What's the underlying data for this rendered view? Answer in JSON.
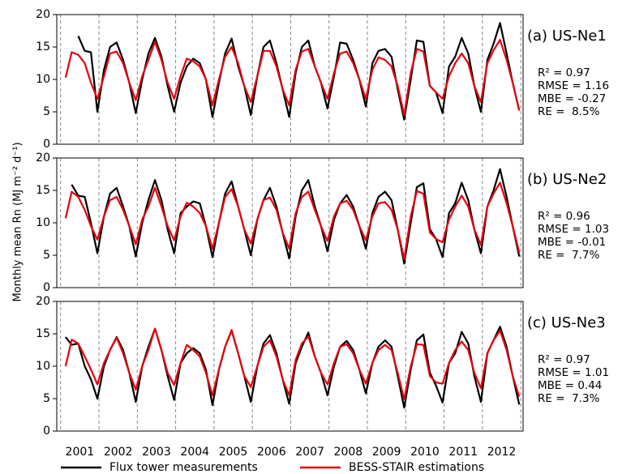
{
  "chart_data": [
    {
      "type": "line",
      "panel_label": "(a) US-Ne1",
      "stats": [
        "R² = 0.97",
        "RMSE = 1.16",
        "MBE = -0.27",
        "RE =  8.5%"
      ],
      "xlim": [
        2000.9,
        2013.06
      ],
      "ylim": [
        0,
        20
      ],
      "yticks": [
        0,
        5,
        10,
        15,
        20
      ],
      "vlines": [
        2001,
        2002,
        2003,
        2004,
        2005,
        2006,
        2007,
        2008,
        2009,
        2010,
        2011,
        2012,
        2013
      ],
      "x": [
        2001.13,
        2001.29,
        2001.46,
        2001.63,
        2001.79,
        2001.96,
        2002.13,
        2002.29,
        2002.46,
        2002.63,
        2002.79,
        2002.96,
        2003.13,
        2003.29,
        2003.46,
        2003.63,
        2003.79,
        2003.96,
        2004.13,
        2004.29,
        2004.46,
        2004.63,
        2004.79,
        2004.96,
        2005.13,
        2005.29,
        2005.46,
        2005.63,
        2005.79,
        2005.96,
        2006.13,
        2006.29,
        2006.46,
        2006.63,
        2006.79,
        2006.96,
        2007.13,
        2007.29,
        2007.46,
        2007.63,
        2007.79,
        2007.96,
        2008.13,
        2008.29,
        2008.46,
        2008.63,
        2008.79,
        2008.96,
        2009.13,
        2009.29,
        2009.46,
        2009.63,
        2009.79,
        2009.96,
        2010.13,
        2010.29,
        2010.46,
        2010.63,
        2010.79,
        2010.96,
        2011.13,
        2011.29,
        2011.46,
        2011.63,
        2011.79,
        2011.96,
        2012.13,
        2012.29,
        2012.46,
        2012.63,
        2012.79,
        2012.96
      ],
      "series": [
        {
          "color": "#000000",
          "values": [
            null,
            null,
            16.7,
            14.4,
            14.2,
            5.0,
            11.5,
            15.0,
            15.7,
            13.0,
            9.5,
            4.8,
            10.0,
            14.0,
            16.4,
            13.5,
            9.0,
            5.0,
            9.5,
            12.0,
            13.2,
            12.5,
            10.0,
            4.2,
            9.5,
            14.0,
            16.3,
            12.0,
            9.0,
            4.5,
            10.5,
            15.0,
            16.0,
            12.5,
            8.5,
            4.2,
            11.0,
            15.0,
            16.0,
            12.0,
            9.5,
            5.5,
            10.5,
            15.7,
            15.5,
            13.0,
            10.0,
            5.8,
            12.5,
            14.4,
            14.7,
            13.5,
            8.5,
            3.8,
            10.0,
            16.0,
            15.8,
            9.0,
            8.0,
            4.8,
            12.0,
            13.5,
            16.4,
            14.0,
            9.0,
            5.0,
            13.0,
            15.5,
            18.7,
            14.0,
            9.5,
            5.2
          ]
        },
        {
          "color": "#e8000b",
          "values": [
            10.3,
            14.2,
            13.8,
            12.5,
            9.5,
            7.0,
            10.5,
            14.0,
            14.3,
            12.5,
            9.5,
            6.8,
            10.5,
            13.0,
            15.8,
            13.0,
            9.5,
            7.0,
            10.5,
            13.2,
            12.8,
            12.0,
            10.0,
            6.0,
            10.0,
            13.5,
            15.0,
            12.5,
            9.0,
            6.5,
            10.5,
            14.4,
            14.4,
            12.0,
            8.5,
            6.0,
            11.5,
            14.3,
            14.7,
            12.0,
            9.5,
            7.0,
            11.0,
            14.0,
            14.3,
            12.5,
            10.0,
            7.0,
            11.5,
            13.4,
            13.0,
            12.0,
            9.0,
            4.5,
            11.0,
            14.7,
            14.3,
            9.0,
            8.0,
            7.0,
            10.5,
            12.5,
            14.0,
            12.5,
            9.0,
            6.5,
            12.5,
            14.5,
            16.1,
            13.0,
            9.5,
            5.2
          ]
        }
      ]
    },
    {
      "type": "line",
      "panel_label": "(b) US-Ne2",
      "stats": [
        "R² = 0.96",
        "RMSE = 1.03",
        "MBE = -0.01",
        "RE =  7.7%"
      ],
      "ylabel": "Monthly mean Rn (MJ m⁻² d⁻¹)",
      "xlim": [
        2000.9,
        2013.06
      ],
      "ylim": [
        0,
        20
      ],
      "yticks": [
        0,
        5,
        10,
        15,
        20
      ],
      "vlines": [
        2001,
        2002,
        2003,
        2004,
        2005,
        2006,
        2007,
        2008,
        2009,
        2010,
        2011,
        2012,
        2013
      ],
      "x": [
        2001.13,
        2001.29,
        2001.46,
        2001.63,
        2001.79,
        2001.96,
        2002.13,
        2002.29,
        2002.46,
        2002.63,
        2002.79,
        2002.96,
        2003.13,
        2003.29,
        2003.46,
        2003.63,
        2003.79,
        2003.96,
        2004.13,
        2004.29,
        2004.46,
        2004.63,
        2004.79,
        2004.96,
        2005.13,
        2005.29,
        2005.46,
        2005.63,
        2005.79,
        2005.96,
        2006.13,
        2006.29,
        2006.46,
        2006.63,
        2006.79,
        2006.96,
        2007.13,
        2007.29,
        2007.46,
        2007.63,
        2007.79,
        2007.96,
        2008.13,
        2008.29,
        2008.46,
        2008.63,
        2008.79,
        2008.96,
        2009.13,
        2009.29,
        2009.46,
        2009.63,
        2009.79,
        2009.96,
        2010.13,
        2010.29,
        2010.46,
        2010.63,
        2010.79,
        2010.96,
        2011.13,
        2011.29,
        2011.46,
        2011.63,
        2011.79,
        2011.96,
        2012.13,
        2012.29,
        2012.46,
        2012.63,
        2012.79,
        2012.96
      ],
      "series": [
        {
          "color": "#000000",
          "values": [
            null,
            15.9,
            14.2,
            14.0,
            10.0,
            5.3,
            11.0,
            14.5,
            15.4,
            12.5,
            9.5,
            4.8,
            10.0,
            13.5,
            16.6,
            13.5,
            9.0,
            5.3,
            11.5,
            12.5,
            13.3,
            13.0,
            9.5,
            4.7,
            10.0,
            14.5,
            16.4,
            12.5,
            9.0,
            5.0,
            10.5,
            13.5,
            15.4,
            12.5,
            8.5,
            4.5,
            11.0,
            15.0,
            16.6,
            12.5,
            9.5,
            5.6,
            10.5,
            13.0,
            14.3,
            12.5,
            9.5,
            6.0,
            11.5,
            14.0,
            14.8,
            13.5,
            9.0,
            3.7,
            10.0,
            15.5,
            16.1,
            9.0,
            7.5,
            4.7,
            11.5,
            13.0,
            16.2,
            13.5,
            9.0,
            5.3,
            12.5,
            15.0,
            18.3,
            14.0,
            9.5,
            4.8
          ]
        },
        {
          "color": "#e8000b",
          "values": [
            10.7,
            14.8,
            14.0,
            12.0,
            9.5,
            7.4,
            11.0,
            13.5,
            14.0,
            12.0,
            9.5,
            6.7,
            10.5,
            12.5,
            15.4,
            12.5,
            9.5,
            7.3,
            11.0,
            13.1,
            12.5,
            11.5,
            9.5,
            6.0,
            10.0,
            14.0,
            15.2,
            12.5,
            9.0,
            6.8,
            10.5,
            13.5,
            13.9,
            12.0,
            8.5,
            6.0,
            11.5,
            14.0,
            14.8,
            12.0,
            9.5,
            7.2,
            11.0,
            13.0,
            13.4,
            12.0,
            9.5,
            7.3,
            11.0,
            13.0,
            13.2,
            12.0,
            9.0,
            4.4,
            11.0,
            14.9,
            14.5,
            8.5,
            7.5,
            7.0,
            10.5,
            12.5,
            14.2,
            12.5,
            9.0,
            6.6,
            12.5,
            14.5,
            16.2,
            13.0,
            9.5,
            5.4
          ]
        }
      ]
    },
    {
      "type": "line",
      "panel_label": "(c) US-Ne3",
      "stats": [
        "R² = 0.97",
        "RMSE = 1.01",
        "MBE = 0.44",
        "RE =  7.3%"
      ],
      "xlim": [
        2000.9,
        2013.06
      ],
      "ylim": [
        0,
        20
      ],
      "yticks": [
        0,
        5,
        10,
        15,
        20
      ],
      "vlines": [
        2001,
        2002,
        2003,
        2004,
        2005,
        2006,
        2007,
        2008,
        2009,
        2010,
        2011,
        2012,
        2013
      ],
      "xticks": [
        {
          "value": 2001.5,
          "label": "2001"
        },
        {
          "value": 2002.5,
          "label": "2002"
        },
        {
          "value": 2003.5,
          "label": "2003"
        },
        {
          "value": 2004.5,
          "label": "2004"
        },
        {
          "value": 2005.5,
          "label": "2005"
        },
        {
          "value": 2006.5,
          "label": "2006"
        },
        {
          "value": 2007.5,
          "label": "2007"
        },
        {
          "value": 2008.5,
          "label": "2008"
        },
        {
          "value": 2009.5,
          "label": "2009"
        },
        {
          "value": 2010.5,
          "label": "2010"
        },
        {
          "value": 2011.5,
          "label": "2011"
        },
        {
          "value": 2012.5,
          "label": "2012"
        }
      ],
      "x": [
        2001.13,
        2001.29,
        2001.46,
        2001.63,
        2001.79,
        2001.96,
        2002.13,
        2002.29,
        2002.46,
        2002.63,
        2002.79,
        2002.96,
        2003.13,
        2003.29,
        2003.46,
        2003.63,
        2003.79,
        2003.96,
        2004.13,
        2004.29,
        2004.46,
        2004.63,
        2004.79,
        2004.96,
        2005.13,
        2005.29,
        2005.46,
        2005.63,
        2005.79,
        2005.96,
        2006.13,
        2006.29,
        2006.46,
        2006.63,
        2006.79,
        2006.96,
        2007.13,
        2007.29,
        2007.46,
        2007.63,
        2007.79,
        2007.96,
        2008.13,
        2008.29,
        2008.46,
        2008.63,
        2008.79,
        2008.96,
        2009.13,
        2009.29,
        2009.46,
        2009.63,
        2009.79,
        2009.96,
        2010.13,
        2010.29,
        2010.46,
        2010.63,
        2010.79,
        2010.96,
        2011.13,
        2011.29,
        2011.46,
        2011.63,
        2011.79,
        2011.96,
        2012.13,
        2012.29,
        2012.46,
        2012.63,
        2012.79,
        2012.96
      ],
      "series": [
        {
          "name": "Flux tower measurements",
          "color": "#000000",
          "values": [
            14.5,
            13.3,
            13.5,
            10.0,
            8.0,
            5.0,
            10.0,
            12.5,
            14.5,
            12.5,
            9.0,
            4.5,
            10.0,
            13.0,
            15.8,
            12.5,
            8.5,
            4.8,
            10.5,
            12.0,
            12.8,
            12.0,
            9.5,
            4.0,
            9.5,
            13.0,
            15.5,
            12.0,
            8.5,
            4.5,
            10.0,
            13.5,
            14.8,
            12.0,
            8.0,
            4.2,
            10.5,
            13.0,
            15.2,
            11.5,
            9.0,
            5.5,
            10.0,
            13.0,
            13.9,
            12.5,
            9.5,
            5.8,
            10.5,
            13.0,
            14.0,
            13.0,
            8.5,
            3.6,
            9.5,
            14.0,
            14.9,
            9.0,
            7.0,
            4.4,
            10.5,
            12.0,
            15.3,
            13.5,
            8.5,
            4.5,
            12.0,
            14.0,
            16.1,
            13.0,
            8.5,
            4.1
          ]
        },
        {
          "name": "BESS-STAIR estimations",
          "color": "#e8000b",
          "values": [
            10.0,
            14.1,
            13.5,
            11.5,
            9.5,
            7.2,
            10.5,
            12.5,
            14.4,
            12.0,
            9.0,
            6.4,
            10.0,
            12.5,
            15.8,
            12.5,
            9.0,
            7.1,
            10.5,
            13.3,
            12.5,
            11.5,
            9.0,
            5.5,
            9.5,
            13.0,
            15.6,
            12.0,
            8.5,
            6.8,
            10.0,
            13.0,
            14.0,
            11.5,
            8.0,
            5.5,
            11.0,
            13.5,
            14.6,
            11.5,
            9.0,
            7.2,
            10.5,
            13.0,
            13.4,
            12.0,
            9.5,
            7.3,
            10.5,
            12.5,
            13.3,
            12.5,
            9.0,
            4.9,
            10.0,
            13.4,
            13.3,
            8.5,
            7.5,
            7.3,
            10.5,
            12.5,
            13.8,
            12.5,
            9.0,
            6.6,
            12.0,
            14.0,
            15.5,
            12.5,
            8.5,
            5.3
          ]
        }
      ]
    }
  ]
}
